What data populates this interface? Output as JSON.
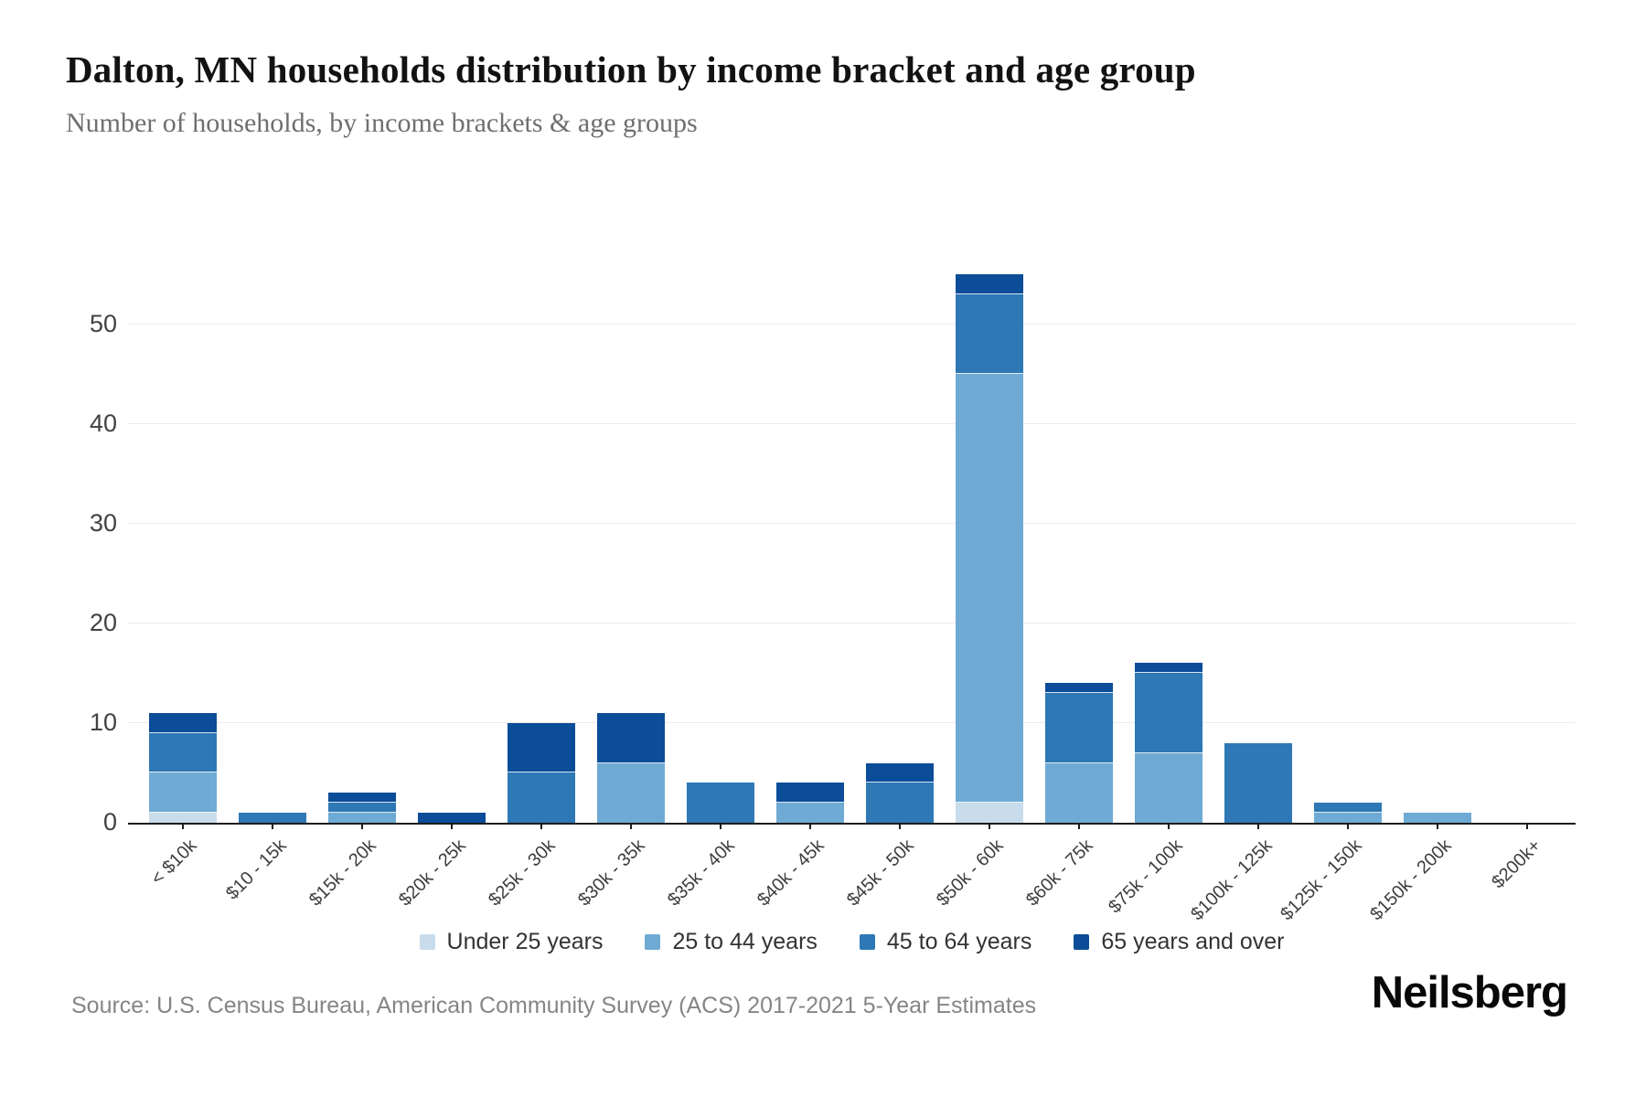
{
  "header": {
    "title": "Dalton, MN households distribution by income bracket and age group",
    "subtitle": "Number of households, by income brackets & age groups"
  },
  "chart_data": {
    "type": "bar",
    "stacked": true,
    "title": "Dalton, MN households distribution by income bracket and age group",
    "xlabel": "",
    "ylabel": "Number of households",
    "categories": [
      "< $10k",
      "$10 - 15k",
      "$15k - 20k",
      "$20k - 25k",
      "$25k - 30k",
      "$30k - 35k",
      "$35k - 40k",
      "$40k - 45k",
      "$45k - 50k",
      "$50k - 60k",
      "$60k - 75k",
      "$75k - 100k",
      "$100k - 125k",
      "$125k - 150k",
      "$150k - 200k",
      "$200k+"
    ],
    "series": [
      {
        "name": "Under 25 years",
        "color": "#c9dcec",
        "values": [
          1,
          0,
          0,
          0,
          0,
          0,
          0,
          0,
          0,
          2,
          0,
          0,
          0,
          0,
          0,
          0
        ]
      },
      {
        "name": "25 to 44 years",
        "color": "#6faad4",
        "values": [
          4,
          0,
          1,
          0,
          0,
          6,
          0,
          2,
          0,
          43,
          6,
          7,
          0,
          1,
          1,
          0
        ]
      },
      {
        "name": "45 to 64 years",
        "color": "#2e78b5",
        "values": [
          4,
          1,
          1,
          0,
          5,
          0,
          4,
          0,
          4,
          8,
          7,
          8,
          8,
          1,
          0,
          0
        ]
      },
      {
        "name": "65 years and over",
        "color": "#0b4d98",
        "values": [
          2,
          0,
          1,
          1,
          5,
          5,
          0,
          2,
          2,
          2,
          1,
          1,
          0,
          0,
          0,
          0
        ]
      }
    ],
    "totals": [
      11,
      1,
      3,
      1,
      10,
      11,
      4,
      4,
      6,
      55,
      14,
      16,
      8,
      2,
      1,
      0
    ],
    "ylim": [
      0,
      55
    ],
    "yticks": [
      0,
      10,
      20,
      30,
      40,
      50
    ],
    "grid": "horizontal",
    "legend_position": "bottom"
  },
  "footer": {
    "source": "Source: U.S. Census Bureau, American Community Survey (ACS) 2017-2021 5-Year Estimates",
    "brand": "Neilsberg"
  }
}
